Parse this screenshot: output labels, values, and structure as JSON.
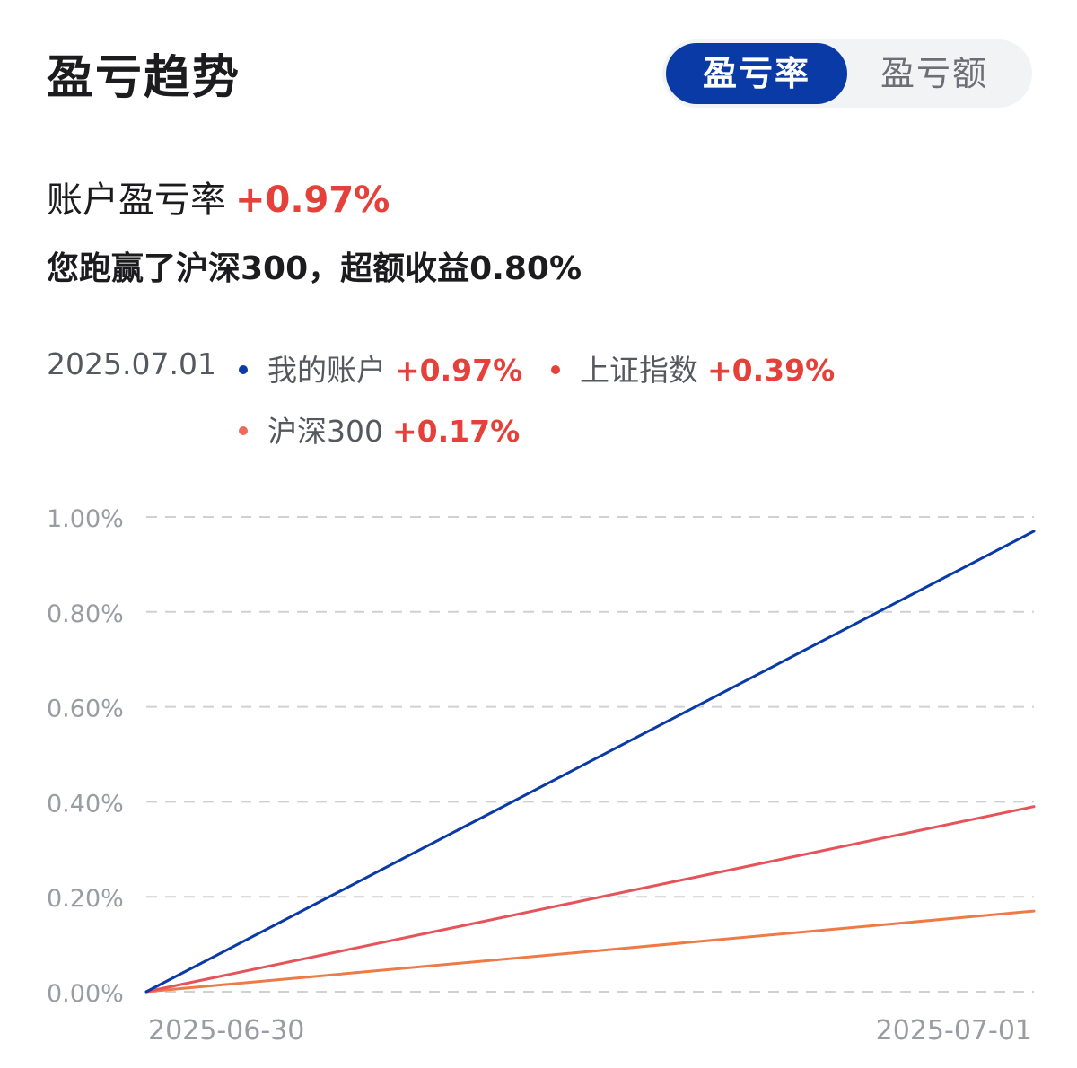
{
  "header": {
    "title": "盈亏趋势",
    "tabs": [
      {
        "label": "盈亏率",
        "active": true
      },
      {
        "label": "盈亏额",
        "active": false
      }
    ]
  },
  "summary": {
    "label": "账户盈亏率",
    "value": "+0.97%",
    "note": "您跑赢了沪深300，超额收益0.80%"
  },
  "legend": {
    "date": "2025.07.01",
    "items": [
      {
        "name": "我的账户",
        "value": "+0.97%",
        "color": "#0a3aa6"
      },
      {
        "name": "上证指数",
        "value": "+0.39%",
        "color": "#e5403a"
      },
      {
        "name": "沪深300",
        "value": "+0.17%",
        "color": "#f06a5a"
      }
    ]
  },
  "chart_data": {
    "type": "line",
    "x": [
      "2025-06-30",
      "2025-07-01"
    ],
    "x_tick_labels": [
      "2025-06-30",
      "2025-07-01"
    ],
    "y_tick_labels": [
      "1.00%",
      "0.80%",
      "0.60%",
      "0.40%",
      "0.20%",
      "0.00%"
    ],
    "ylim": [
      0,
      1.0
    ],
    "y_unit": "%",
    "grid": true,
    "series": [
      {
        "name": "我的账户",
        "values": [
          0,
          0.97
        ],
        "color": "#0a3aa6"
      },
      {
        "name": "上证指数",
        "values": [
          0,
          0.39
        ],
        "color": "#e5545a"
      },
      {
        "name": "沪深300",
        "values": [
          0,
          0.17
        ],
        "color": "#ee7a45"
      }
    ]
  }
}
